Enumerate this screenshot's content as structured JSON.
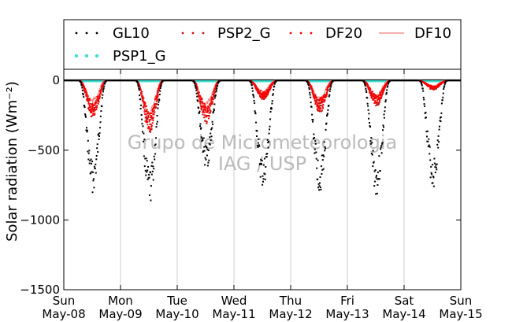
{
  "chart_data": {
    "type": "scatter",
    "title": "",
    "xlabel": "",
    "ylabel": "Solar radiation (Wm⁻²)",
    "ylim": [
      -1500,
      80
    ],
    "xlim": [
      0,
      7
    ],
    "yticks": [
      0,
      -500,
      -1000,
      -1500
    ],
    "ytick_labels": [
      "0",
      "−500",
      "−1000",
      "−1500"
    ],
    "xticks": [
      {
        "day": "Sun",
        "date": "May-08"
      },
      {
        "day": "Mon",
        "date": "May-09"
      },
      {
        "day": "Tue",
        "date": "May-10"
      },
      {
        "day": "Wed",
        "date": "May-11"
      },
      {
        "day": "Thu",
        "date": "May-12"
      },
      {
        "day": "Fri",
        "date": "May-13"
      },
      {
        "day": "Sat",
        "date": "May-14"
      },
      {
        "day": "Sun",
        "date": "May-15"
      }
    ],
    "grid": "vertical",
    "legend_placement": "top",
    "watermark": [
      "Grupo de Micrometeorologia",
      "IAG / USP"
    ],
    "series": [
      {
        "name": "GL10",
        "color": "#000000",
        "marker": "dot",
        "daily_min": [
          -760,
          -840,
          -600,
          -740,
          -760,
          -780,
          -730
        ]
      },
      {
        "name": "PSP2_G",
        "color": "#cc1111",
        "marker": "dot",
        "daily_min": [
          -260,
          -370,
          -300,
          -130,
          -220,
          -170,
          -60
        ]
      },
      {
        "name": "DF20",
        "color": "#ff0000",
        "marker": "dot",
        "daily_min": [
          -240,
          -340,
          -280,
          -120,
          -200,
          -160,
          -55
        ]
      },
      {
        "name": "DF10",
        "color": "#f08080",
        "marker": "line",
        "daily_min": [
          -150,
          -250,
          -180,
          -80,
          -130,
          -110,
          -40
        ]
      },
      {
        "name": "PSP1_G",
        "color": "#40e0d0",
        "marker": "dot",
        "daily_min": [
          0,
          0,
          0,
          0,
          0,
          0,
          0
        ]
      }
    ]
  }
}
